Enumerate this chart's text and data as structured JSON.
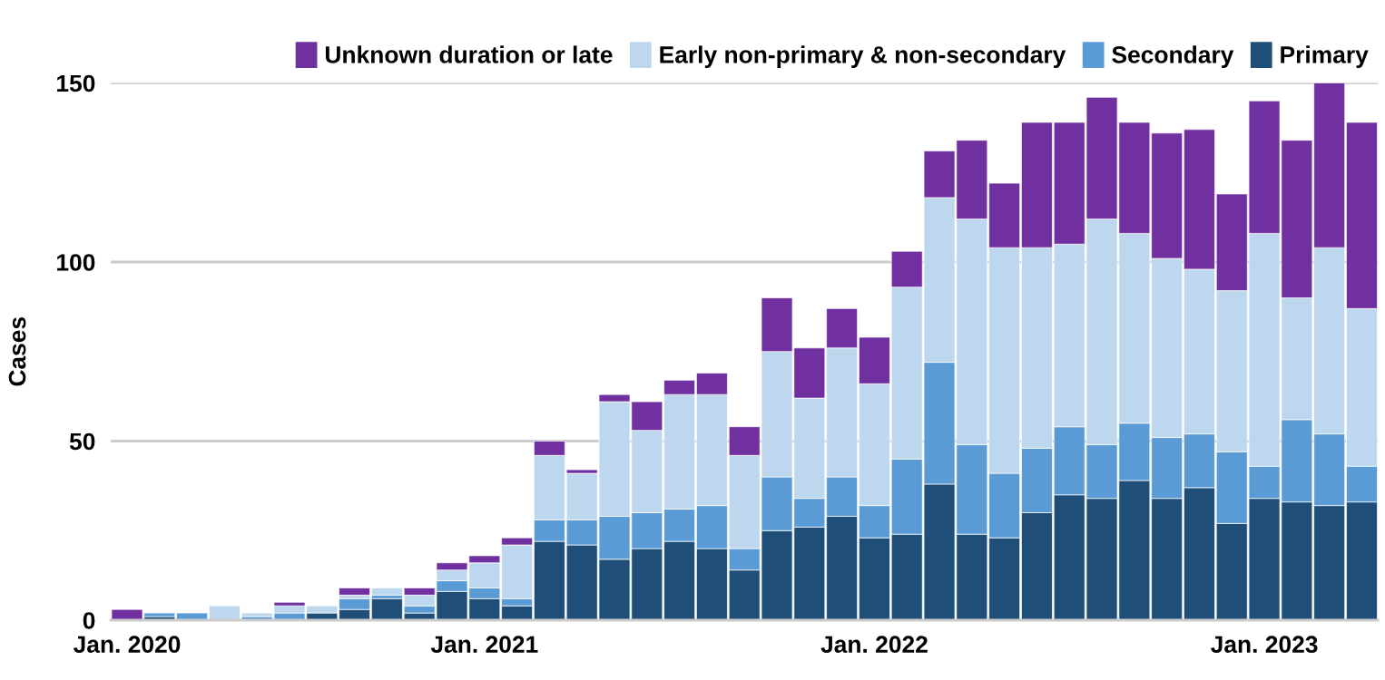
{
  "chart_data": {
    "type": "bar",
    "stacked": true,
    "ylabel": "Cases",
    "categories": [
      "Jan. 2020",
      null,
      null,
      null,
      null,
      null,
      null,
      null,
      null,
      null,
      null,
      "Jan. 2021",
      null,
      null,
      null,
      null,
      null,
      null,
      null,
      null,
      null,
      null,
      null,
      "Jan. 2022",
      null,
      null,
      null,
      null,
      null,
      null,
      null,
      null,
      null,
      null,
      null,
      "Jan. 2023",
      null,
      null,
      null
    ],
    "series": [
      {
        "name": "Primary",
        "color": "#1f4e79",
        "values": [
          0,
          1,
          0,
          0,
          0,
          0,
          2,
          3,
          6,
          2,
          8,
          6,
          4,
          22,
          21,
          17,
          20,
          22,
          20,
          14,
          25,
          26,
          29,
          23,
          24,
          38,
          24,
          23,
          30,
          35,
          34,
          39,
          34,
          37,
          27,
          34,
          33,
          32,
          33
        ]
      },
      {
        "name": "Secondary",
        "color": "#5b9bd5",
        "values": [
          0,
          1,
          2,
          0,
          1,
          2,
          0,
          3,
          1,
          2,
          3,
          3,
          2,
          6,
          7,
          12,
          10,
          9,
          12,
          6,
          15,
          8,
          11,
          9,
          21,
          34,
          25,
          18,
          18,
          19,
          15,
          16,
          17,
          15,
          20,
          9,
          23,
          20,
          10
        ]
      },
      {
        "name": "Early non-primary & non-secondary",
        "color": "#bdd7ee",
        "values": [
          0,
          0,
          0,
          4,
          1,
          2,
          2,
          1,
          2,
          3,
          3,
          7,
          15,
          18,
          13,
          32,
          23,
          32,
          31,
          26,
          35,
          28,
          36,
          34,
          48,
          46,
          63,
          63,
          56,
          51,
          63,
          53,
          50,
          46,
          45,
          65,
          34,
          52,
          44
        ]
      },
      {
        "name": "Unknown duration or late",
        "color": "#7030a0",
        "values": [
          3,
          0,
          0,
          0,
          0,
          1,
          0,
          2,
          0,
          2,
          2,
          2,
          2,
          4,
          1,
          2,
          8,
          4,
          6,
          8,
          15,
          14,
          11,
          13,
          10,
          13,
          22,
          18,
          35,
          34,
          34,
          31,
          35,
          39,
          27,
          37,
          44,
          46,
          52
        ]
      }
    ],
    "ylim": [
      0,
      150
    ],
    "yticks": [
      0,
      50,
      100,
      150
    ],
    "grid": "y",
    "legend": "top"
  }
}
